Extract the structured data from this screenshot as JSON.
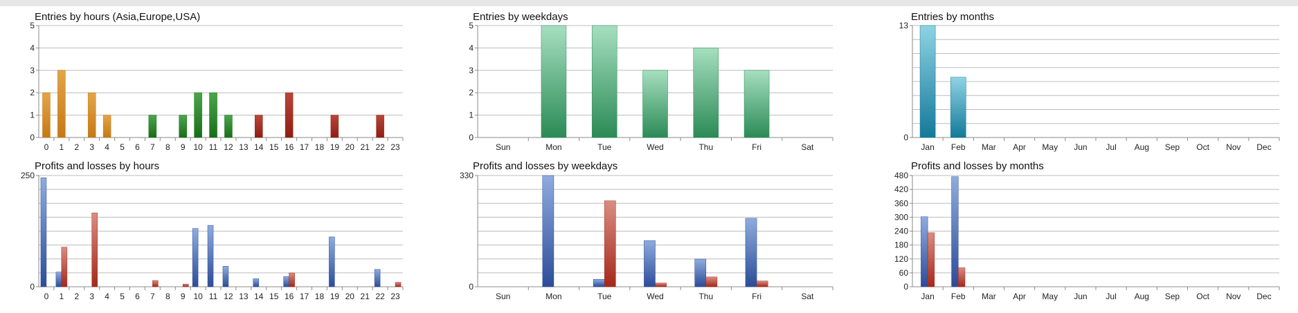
{
  "colors": {
    "orange": [
      "#e3a549",
      "#c57913"
    ],
    "green": [
      "#4ba64b",
      "#186e18"
    ],
    "red": [
      "#b84739",
      "#8f1e12"
    ],
    "mint": [
      "#a6dfbf",
      "#2b8a56"
    ],
    "teal": [
      "#8fd3e3",
      "#13799a"
    ],
    "blue": [
      "#8facde",
      "#2c4c99"
    ],
    "salmon": [
      "#d98d82",
      "#a5281a"
    ],
    "grid": "#bcbcbc",
    "axis": "#8a8a8a"
  },
  "chart_data": [
    {
      "type": "bar",
      "title": "Entries by hours (Asia,Europe,USA)",
      "categories": [
        "0",
        "1",
        "2",
        "3",
        "4",
        "5",
        "6",
        "7",
        "8",
        "9",
        "10",
        "11",
        "12",
        "13",
        "14",
        "15",
        "16",
        "17",
        "18",
        "19",
        "20",
        "21",
        "22",
        "23"
      ],
      "series": [
        {
          "values": [
            2,
            3,
            0,
            2,
            1,
            0,
            0,
            1,
            0,
            1,
            2,
            2,
            1,
            0,
            1,
            0,
            2,
            0,
            0,
            1,
            0,
            0,
            1,
            0
          ],
          "colors": [
            "orange",
            "orange",
            "orange",
            "orange",
            "orange",
            "orange",
            "orange",
            "green",
            "green",
            "green",
            "green",
            "green",
            "green",
            "red",
            "red",
            "red",
            "red",
            "red",
            "red",
            "red",
            "red",
            "red",
            "red",
            "red"
          ]
        }
      ],
      "yticks": [
        "0",
        "1",
        "2",
        "3",
        "4",
        "5"
      ],
      "ylim": [
        0,
        5
      ],
      "grid": true
    },
    {
      "type": "bar",
      "title": "Entries by weekdays",
      "categories": [
        "Sun",
        "Mon",
        "Tue",
        "Wed",
        "Thu",
        "Fri",
        "Sat"
      ],
      "series": [
        {
          "values": [
            0,
            5,
            5,
            3,
            4,
            3,
            0
          ],
          "color": "mint"
        }
      ],
      "yticks": [
        "0",
        "1",
        "2",
        "3",
        "4",
        "5"
      ],
      "ylim": [
        0,
        5
      ],
      "grid": true
    },
    {
      "type": "bar",
      "title": "Entries by months",
      "categories": [
        "Jan",
        "Feb",
        "Mar",
        "Apr",
        "May",
        "Jun",
        "Jul",
        "Aug",
        "Sep",
        "Oct",
        "Nov",
        "Dec"
      ],
      "series": [
        {
          "values": [
            13,
            7,
            0,
            0,
            0,
            0,
            0,
            0,
            0,
            0,
            0,
            0
          ],
          "color": "teal"
        }
      ],
      "yticks": [
        "0",
        "13"
      ],
      "ylim": [
        0,
        13
      ],
      "grid": true
    },
    {
      "type": "bar",
      "title": "Profits and losses by hours",
      "categories": [
        "0",
        "1",
        "2",
        "3",
        "4",
        "5",
        "6",
        "7",
        "8",
        "9",
        "10",
        "11",
        "12",
        "13",
        "14",
        "15",
        "16",
        "17",
        "18",
        "19",
        "20",
        "21",
        "22",
        "23"
      ],
      "series": [
        {
          "values": [
            245,
            33,
            0,
            0,
            0,
            0,
            0,
            0,
            0,
            0,
            131,
            138,
            46,
            0,
            18,
            0,
            23,
            0,
            0,
            112,
            0,
            0,
            39,
            0
          ],
          "color": "blue"
        },
        {
          "values": [
            0,
            89,
            0,
            166,
            0,
            0,
            0,
            14,
            0,
            6,
            0,
            0,
            0,
            0,
            0,
            0,
            31,
            0,
            0,
            0,
            0,
            0,
            0,
            10
          ],
          "color": "salmon"
        }
      ],
      "yticks": [
        "0",
        "250"
      ],
      "ylim": [
        0,
        250
      ],
      "grid": true
    },
    {
      "type": "bar",
      "title": "Profits and losses by weekdays",
      "categories": [
        "Sun",
        "Mon",
        "Tue",
        "Wed",
        "Thu",
        "Fri",
        "Sat"
      ],
      "series": [
        {
          "values": [
            0,
            330,
            22,
            137,
            82,
            203,
            0
          ],
          "color": "blue"
        },
        {
          "values": [
            0,
            0,
            255,
            11,
            29,
            17,
            0
          ],
          "color": "salmon"
        }
      ],
      "yticks": [
        "0",
        "330"
      ],
      "ylim": [
        0,
        330
      ],
      "grid": true
    },
    {
      "type": "bar",
      "title": "Profits and losses by months",
      "categories": [
        "Jan",
        "Feb",
        "Mar",
        "Apr",
        "May",
        "Jun",
        "Jul",
        "Aug",
        "Sep",
        "Oct",
        "Nov",
        "Dec"
      ],
      "series": [
        {
          "values": [
            302,
            475,
            0,
            0,
            0,
            0,
            0,
            0,
            0,
            0,
            0,
            0
          ],
          "color": "blue"
        },
        {
          "values": [
            233,
            82,
            0,
            0,
            0,
            0,
            0,
            0,
            0,
            0,
            0,
            0
          ],
          "color": "salmon"
        }
      ],
      "yticks": [
        "0",
        "60",
        "120",
        "180",
        "240",
        "300",
        "360",
        "420",
        "480"
      ],
      "ylim": [
        0,
        480
      ],
      "grid": true
    }
  ]
}
